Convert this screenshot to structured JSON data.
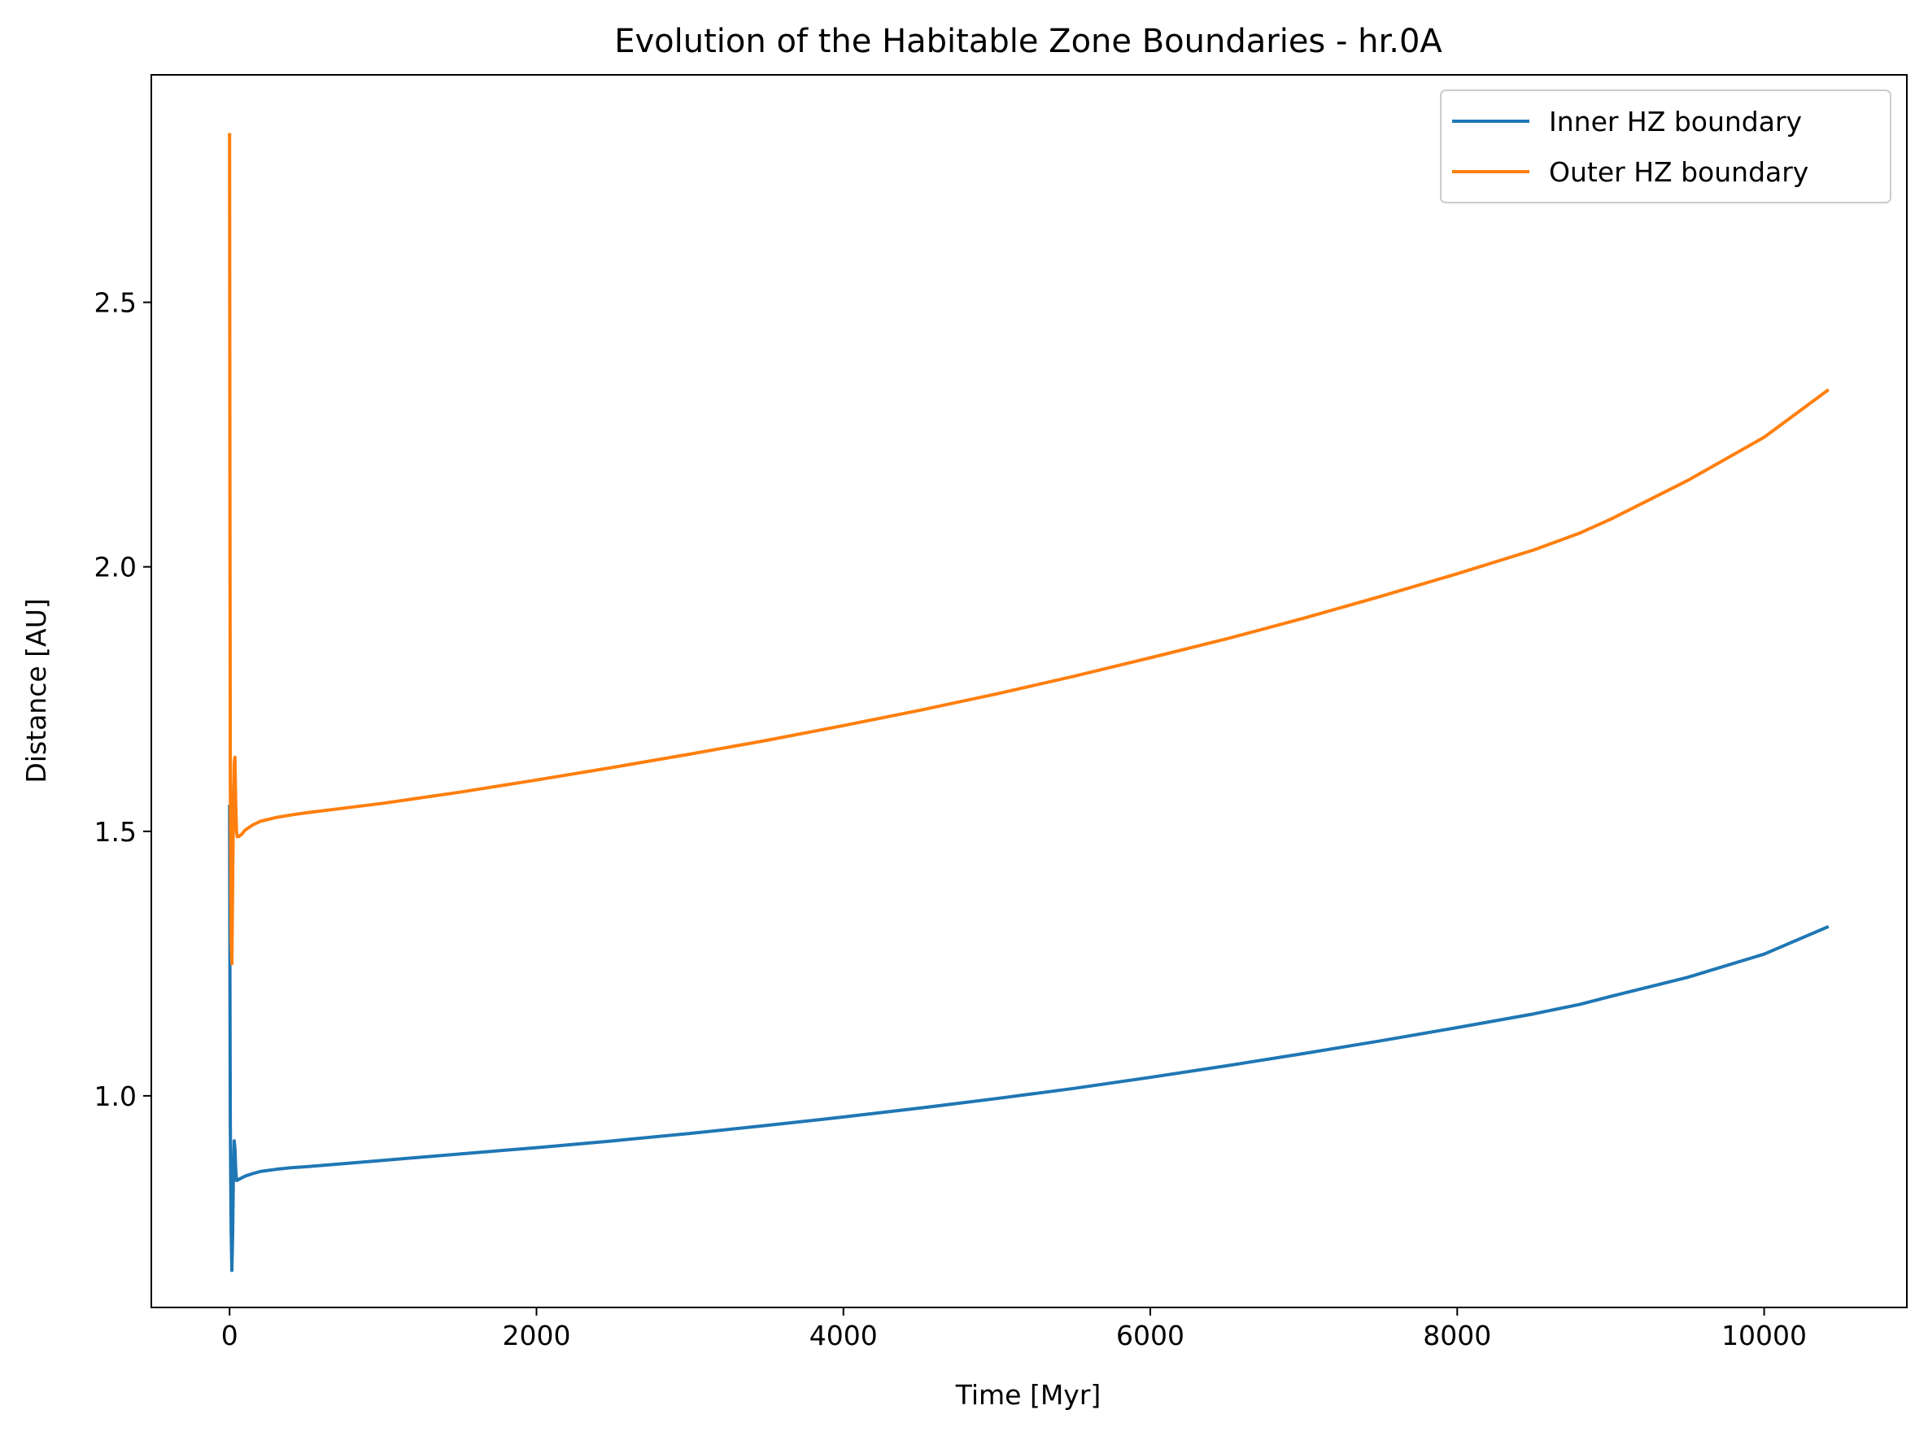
{
  "chart_data": {
    "type": "line",
    "title": "Evolution of the Habitable Zone Boundaries - hr.0A",
    "xlabel": "Time [Myr]",
    "ylabel": "Distance [AU]",
    "xlim": [
      -510,
      10930
    ],
    "ylim": [
      0.6,
      2.93
    ],
    "xticks": [
      0,
      2000,
      4000,
      6000,
      8000,
      10000
    ],
    "xtick_labels": [
      "0",
      "2000",
      "4000",
      "6000",
      "8000",
      "10000"
    ],
    "yticks": [
      1.0,
      1.5,
      2.0,
      2.5
    ],
    "ytick_labels": [
      "1.0",
      "1.5",
      "2.0",
      "2.5"
    ],
    "grid": false,
    "legend_position": "top-right",
    "series": [
      {
        "name": "Inner HZ boundary",
        "color": "#1f77b4",
        "x": [
          0,
          2,
          5,
          10,
          15,
          20,
          25,
          30,
          35,
          40,
          45,
          50,
          60,
          80,
          100,
          150,
          200,
          300,
          400,
          500,
          750,
          1000,
          1500,
          2000,
          2500,
          3000,
          3500,
          4000,
          4500,
          5000,
          5500,
          6000,
          6500,
          7000,
          7500,
          8000,
          8500,
          8800,
          9000,
          9500,
          10000,
          10420
        ],
        "y": [
          1.55,
          1.25,
          0.95,
          0.75,
          0.67,
          0.74,
          0.85,
          0.915,
          0.9,
          0.86,
          0.84,
          0.84,
          0.842,
          0.845,
          0.848,
          0.853,
          0.857,
          0.861,
          0.864,
          0.866,
          0.872,
          0.878,
          0.89,
          0.902,
          0.915,
          0.929,
          0.944,
          0.96,
          0.977,
          0.995,
          1.014,
          1.035,
          1.057,
          1.08,
          1.104,
          1.129,
          1.155,
          1.173,
          1.188,
          1.224,
          1.268,
          1.32
        ]
      },
      {
        "name": "Outer HZ boundary",
        "color": "#ff7f0e",
        "x": [
          0,
          2,
          5,
          10,
          15,
          20,
          25,
          30,
          35,
          40,
          45,
          50,
          60,
          80,
          100,
          150,
          200,
          300,
          400,
          500,
          750,
          1000,
          1500,
          2000,
          2500,
          3000,
          3500,
          4000,
          4500,
          5000,
          5500,
          6000,
          6500,
          7000,
          7500,
          8000,
          8500,
          8800,
          9000,
          9500,
          10000,
          10420
        ],
        "y": [
          2.82,
          2.2,
          1.6,
          1.3,
          1.25,
          1.4,
          1.55,
          1.63,
          1.64,
          1.55,
          1.5,
          1.49,
          1.49,
          1.495,
          1.502,
          1.512,
          1.519,
          1.526,
          1.531,
          1.535,
          1.544,
          1.553,
          1.574,
          1.597,
          1.621,
          1.646,
          1.672,
          1.7,
          1.729,
          1.76,
          1.793,
          1.828,
          1.864,
          1.903,
          1.944,
          1.987,
          2.032,
          2.064,
          2.09,
          2.163,
          2.245,
          2.335
        ]
      }
    ]
  }
}
